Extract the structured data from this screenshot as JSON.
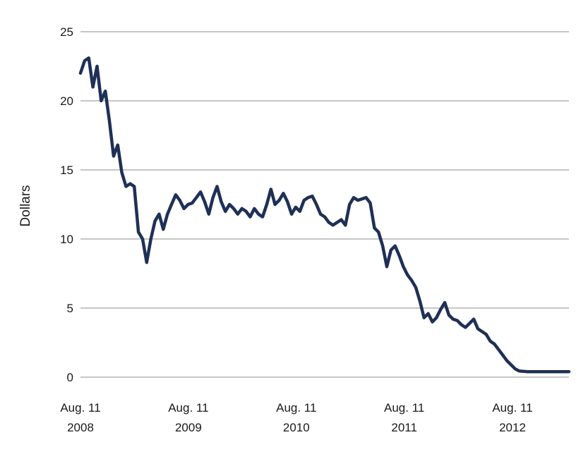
{
  "chart_data": {
    "type": "line",
    "title": "",
    "xlabel": "",
    "ylabel": "Dollars",
    "ylim": [
      0,
      25
    ],
    "yticks": [
      0,
      5,
      10,
      15,
      20,
      25
    ],
    "xlim": [
      "2008-08-11",
      "2013-02-18"
    ],
    "xticks": [
      {
        "date": "2008-08-11",
        "line1": "Aug. 11",
        "line2": "2008"
      },
      {
        "date": "2009-08-11",
        "line1": "Aug. 11",
        "line2": "2009"
      },
      {
        "date": "2010-08-11",
        "line1": "Aug. 11",
        "line2": "2010"
      },
      {
        "date": "2011-08-11",
        "line1": "Aug. 11",
        "line2": "2011"
      },
      {
        "date": "2012-08-11",
        "line1": "Aug. 11",
        "line2": "2012"
      }
    ],
    "grid": "horizontal",
    "line_color": "#1f3056",
    "series": [
      {
        "x": [
          "2008-08-11",
          "2008-08-25",
          "2008-09-08",
          "2008-09-22",
          "2008-10-06",
          "2008-10-20",
          "2008-11-03",
          "2008-11-17",
          "2008-12-01",
          "2008-12-15",
          "2008-12-29",
          "2009-01-12",
          "2009-01-26",
          "2009-02-09",
          "2009-02-23",
          "2009-03-09",
          "2009-03-23",
          "2009-04-06",
          "2009-04-20",
          "2009-05-04",
          "2009-05-18",
          "2009-06-01",
          "2009-06-15",
          "2009-06-29",
          "2009-07-13",
          "2009-07-27",
          "2009-08-10",
          "2009-08-24",
          "2009-09-07",
          "2009-09-21",
          "2009-10-05",
          "2009-10-19",
          "2009-11-02",
          "2009-11-16",
          "2009-11-30",
          "2009-12-14",
          "2009-12-28",
          "2010-01-11",
          "2010-01-25",
          "2010-02-08",
          "2010-02-22",
          "2010-03-08",
          "2010-03-22",
          "2010-04-05",
          "2010-04-19",
          "2010-05-03",
          "2010-05-17",
          "2010-05-31",
          "2010-06-14",
          "2010-06-28",
          "2010-07-12",
          "2010-07-26",
          "2010-08-09",
          "2010-08-23",
          "2010-09-06",
          "2010-09-20",
          "2010-10-04",
          "2010-10-18",
          "2010-11-01",
          "2010-11-15",
          "2010-11-29",
          "2010-12-13",
          "2010-12-27",
          "2011-01-10",
          "2011-01-24",
          "2011-02-07",
          "2011-02-21",
          "2011-03-07",
          "2011-03-21",
          "2011-04-04",
          "2011-04-18",
          "2011-05-02",
          "2011-05-16",
          "2011-05-30",
          "2011-06-13",
          "2011-06-27",
          "2011-07-11",
          "2011-07-25",
          "2011-08-08",
          "2011-08-22",
          "2011-09-05",
          "2011-09-19",
          "2011-10-03",
          "2011-10-17",
          "2011-10-31",
          "2011-11-14",
          "2011-11-28",
          "2011-12-12",
          "2011-12-26",
          "2012-01-09",
          "2012-01-23",
          "2012-02-06",
          "2012-02-20",
          "2012-03-05",
          "2012-03-19",
          "2012-04-02",
          "2012-04-16",
          "2012-04-30",
          "2012-05-14",
          "2012-05-28",
          "2012-06-11",
          "2012-06-25",
          "2012-07-09",
          "2012-07-23",
          "2012-08-06",
          "2012-08-20",
          "2012-09-03",
          "2012-09-17",
          "2012-10-01",
          "2012-10-15",
          "2012-10-29",
          "2012-11-12",
          "2012-11-26",
          "2012-12-10",
          "2012-12-24",
          "2013-01-07",
          "2013-01-21",
          "2013-02-04",
          "2013-02-18"
        ],
        "values": [
          22.0,
          22.9,
          23.1,
          21.0,
          22.5,
          20.0,
          20.7,
          18.5,
          16.0,
          16.8,
          14.8,
          13.8,
          14.0,
          13.8,
          10.5,
          10.0,
          8.3,
          10.0,
          11.3,
          11.8,
          10.7,
          11.8,
          12.5,
          13.2,
          12.8,
          12.2,
          12.5,
          12.6,
          13.0,
          13.4,
          12.7,
          11.8,
          13.0,
          13.8,
          12.7,
          12.0,
          12.5,
          12.2,
          11.8,
          12.2,
          12.0,
          11.6,
          12.2,
          11.8,
          11.6,
          12.5,
          13.6,
          12.5,
          12.8,
          13.3,
          12.7,
          11.8,
          12.3,
          12.0,
          12.8,
          13.0,
          13.1,
          12.5,
          11.8,
          11.6,
          11.2,
          11.0,
          11.2,
          11.4,
          11.0,
          12.5,
          13.0,
          12.8,
          12.9,
          13.0,
          12.6,
          10.8,
          10.5,
          9.5,
          8.0,
          9.2,
          9.5,
          8.8,
          8.0,
          7.4,
          7.0,
          6.5,
          5.5,
          4.3,
          4.6,
          4.0,
          4.3,
          4.9,
          5.4,
          4.5,
          4.2,
          4.1,
          3.8,
          3.6,
          3.9,
          4.2,
          3.5,
          3.3,
          3.1,
          2.6,
          2.4,
          2.0,
          1.6,
          1.2,
          0.9,
          0.6,
          0.45,
          0.42,
          0.4,
          0.4,
          0.4,
          0.4,
          0.4,
          0.4,
          0.4,
          0.4,
          0.4,
          0.4,
          0.4
        ]
      }
    ]
  }
}
